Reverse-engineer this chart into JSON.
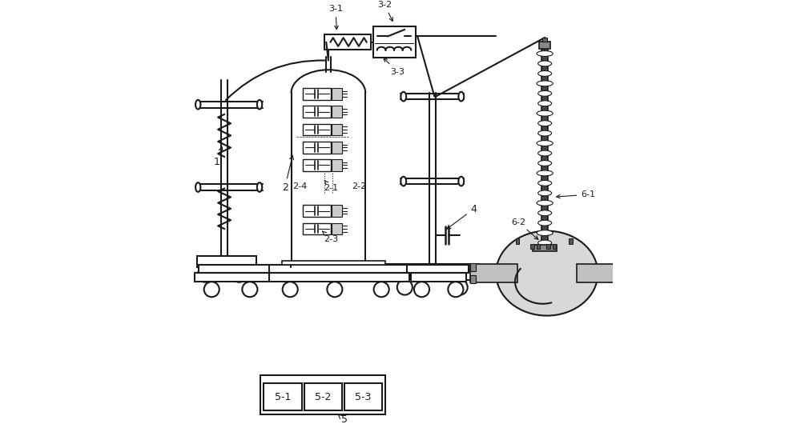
{
  "bg_color": "#ffffff",
  "line_color": "#1a1a1a",
  "fill_light": "#d0d0d0",
  "fill_medium": "#b0b0b0",
  "fill_dark": "#808080"
}
